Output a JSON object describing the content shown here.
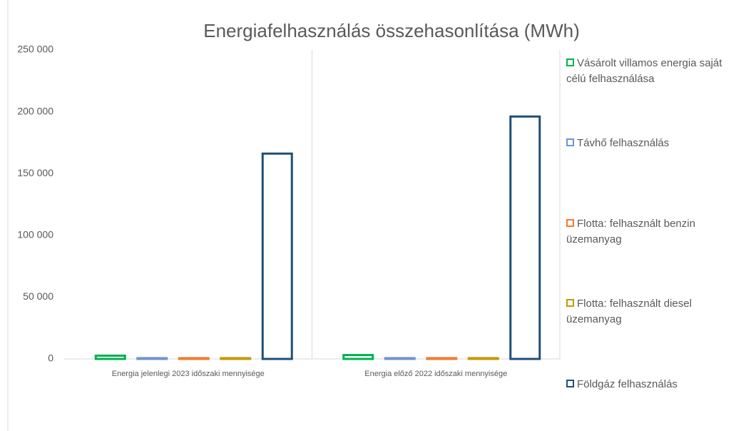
{
  "chart_data": {
    "type": "bar",
    "title": "Energiafelhasználás összehasonlítása  (MWh)",
    "categories": [
      "Energia jelenlegi 2023 időszaki mennyisége",
      "Energia előző 2022 időszaki mennyisége"
    ],
    "series": [
      {
        "name": "Vásárolt villamos energia saját célú felhasználása",
        "color": "#00b050",
        "values": [
          3500,
          4000
        ]
      },
      {
        "name": "Távhő felhasználás",
        "color": "#7094d0",
        "values": [
          1500,
          1500
        ]
      },
      {
        "name": "Flotta: felhasznált benzin üzemanyag",
        "color": "#ed7d31",
        "values": [
          1500,
          1500
        ]
      },
      {
        "name": "Flotta: felhasznált diesel üzemanyag",
        "color": "#c49a00",
        "values": [
          1500,
          1500
        ]
      },
      {
        "name": "Földgáz felhasználás",
        "color": "#1f4e79",
        "values": [
          167000,
          197000
        ]
      }
    ],
    "ylim": [
      0,
      250000
    ],
    "yticks": [
      0,
      {
        "value": 50000,
        "label": "50 000"
      },
      {
        "value": 100000,
        "label": "100 000"
      },
      {
        "value": 150000,
        "label": "150 000"
      },
      {
        "value": 200000,
        "label": "200 000"
      },
      {
        "value": 250000,
        "label": "250 000"
      }
    ],
    "legend": "right",
    "fill": false
  }
}
